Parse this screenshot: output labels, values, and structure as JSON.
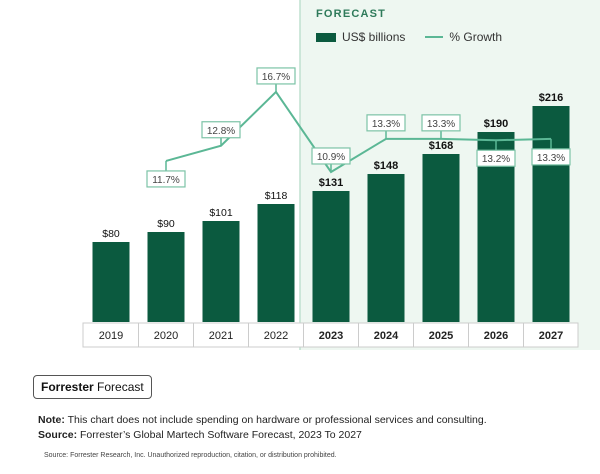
{
  "chart_data": {
    "type": "bar",
    "categories": [
      "2019",
      "2020",
      "2021",
      "2022",
      "2023",
      "2024",
      "2025",
      "2026",
      "2027"
    ],
    "forecast_label": "FORECAST",
    "forecast_start": "2023",
    "series": [
      {
        "name": "US$ billions",
        "type": "bar",
        "values": [
          80,
          90,
          101,
          118,
          131,
          148,
          168,
          190,
          216
        ],
        "labels": [
          "$80",
          "$90",
          "$101",
          "$118",
          "$131",
          "$148",
          "$168",
          "$190",
          "$216"
        ]
      },
      {
        "name": "% Growth",
        "type": "line",
        "values": [
          null,
          11.7,
          12.8,
          16.7,
          10.9,
          13.3,
          13.3,
          13.2,
          13.3
        ],
        "labels": [
          null,
          "11.7%",
          "12.8%",
          "16.7%",
          "10.9%",
          "13.3%",
          "13.3%",
          "13.2%",
          "13.3%"
        ]
      }
    ],
    "legend": "top",
    "colors": {
      "bar": "#0b5a3f",
      "line": "#5bb795",
      "forecast_bg": "#eef7f1"
    }
  },
  "footer": {
    "badge_bold": "Forrester",
    "badge_rest": " Forecast",
    "note_label": "Note:",
    "note_text": " This chart does not include spending on hardware or professional services and consulting.",
    "source_label": "Source:",
    "source_text": " Forrester’s Global Martech Software Forecast, 2023 To 2027",
    "copyright": "Source: Forrester Research, Inc. Unauthorized reproduction, citation, or distribution prohibited."
  }
}
